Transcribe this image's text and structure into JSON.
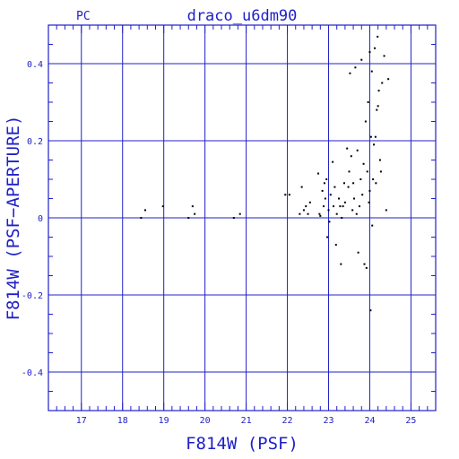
{
  "chart_data": {
    "type": "scatter",
    "title": "draco_u6dm90",
    "corner_label": "PC",
    "xlabel": "F814W (PSF)",
    "ylabel": "F814W (PSF−APERTURE)",
    "xlim": [
      16.2,
      25.6
    ],
    "ylim": [
      -0.5,
      0.5
    ],
    "grid": true,
    "x_major_ticks": [
      17,
      18,
      19,
      20,
      21,
      22,
      23,
      24,
      25
    ],
    "x_tick_labels": [
      "17",
      "18",
      "19",
      "20",
      "21",
      "22",
      "23",
      "24",
      "25"
    ],
    "y_major_ticks": [
      -0.4,
      -0.2,
      0,
      0.2,
      0.4
    ],
    "y_tick_labels": [
      "-0.4",
      "-0.2",
      "0",
      "0.2",
      "0.4"
    ],
    "x_minor_step": 0.2,
    "y_minor_step": 0.05,
    "colors": {
      "axes": "#2020c8",
      "points": "#000000"
    },
    "points": [
      [
        18.45,
        0.0
      ],
      [
        18.55,
        0.02
      ],
      [
        18.98,
        0.03
      ],
      [
        19.6,
        0.0
      ],
      [
        19.7,
        0.03
      ],
      [
        19.75,
        0.01
      ],
      [
        20.7,
        0.0
      ],
      [
        20.85,
        0.01
      ],
      [
        21.95,
        0.06
      ],
      [
        22.05,
        0.06
      ],
      [
        22.3,
        0.01
      ],
      [
        22.35,
        0.08
      ],
      [
        22.4,
        0.02
      ],
      [
        22.45,
        0.03
      ],
      [
        22.5,
        0.01
      ],
      [
        22.55,
        0.04
      ],
      [
        22.75,
        0.115
      ],
      [
        22.78,
        0.01
      ],
      [
        22.8,
        0.005
      ],
      [
        22.85,
        0.07
      ],
      [
        22.88,
        0.03
      ],
      [
        22.9,
        0.09
      ],
      [
        22.92,
        0.05
      ],
      [
        22.95,
        0.1
      ],
      [
        22.97,
        -0.05
      ],
      [
        23.0,
        0.02
      ],
      [
        23.02,
        -0.01
      ],
      [
        23.05,
        0.06
      ],
      [
        23.1,
        0.145
      ],
      [
        23.12,
        0.03
      ],
      [
        23.15,
        0.08
      ],
      [
        23.18,
        -0.07
      ],
      [
        23.2,
        0.01
      ],
      [
        23.25,
        0.05
      ],
      [
        23.28,
        0.03
      ],
      [
        23.3,
        -0.12
      ],
      [
        23.32,
        0.0
      ],
      [
        23.35,
        0.03
      ],
      [
        23.38,
        0.09
      ],
      [
        23.4,
        0.04
      ],
      [
        23.45,
        0.18
      ],
      [
        23.48,
        0.08
      ],
      [
        23.5,
        0.12
      ],
      [
        23.52,
        0.375
      ],
      [
        23.55,
        0.16
      ],
      [
        23.58,
        0.02
      ],
      [
        23.6,
        0.09
      ],
      [
        23.62,
        0.05
      ],
      [
        23.65,
        0.39
      ],
      [
        23.68,
        0.01
      ],
      [
        23.7,
        0.175
      ],
      [
        23.72,
        -0.09
      ],
      [
        23.75,
        0.03
      ],
      [
        23.78,
        0.1
      ],
      [
        23.8,
        0.41
      ],
      [
        23.82,
        0.06
      ],
      [
        23.85,
        0.14
      ],
      [
        23.87,
        -0.12
      ],
      [
        23.9,
        0.25
      ],
      [
        23.92,
        -0.13
      ],
      [
        23.94,
        0.12
      ],
      [
        23.96,
        0.3
      ],
      [
        23.98,
        0.04
      ],
      [
        24.0,
        0.43
      ],
      [
        24.0,
        0.07
      ],
      [
        24.02,
        -0.24
      ],
      [
        24.03,
        0.21
      ],
      [
        24.05,
        0.38
      ],
      [
        24.06,
        -0.02
      ],
      [
        24.08,
        0.1
      ],
      [
        24.1,
        0.19
      ],
      [
        24.12,
        0.44
      ],
      [
        24.14,
        0.21
      ],
      [
        24.15,
        0.09
      ],
      [
        24.17,
        0.28
      ],
      [
        24.19,
        0.47
      ],
      [
        24.2,
        0.29
      ],
      [
        24.22,
        0.33
      ],
      [
        24.25,
        0.15
      ],
      [
        24.27,
        0.12
      ],
      [
        24.3,
        0.35
      ],
      [
        24.35,
        0.42
      ],
      [
        24.4,
        0.02
      ],
      [
        24.45,
        0.36
      ]
    ]
  }
}
